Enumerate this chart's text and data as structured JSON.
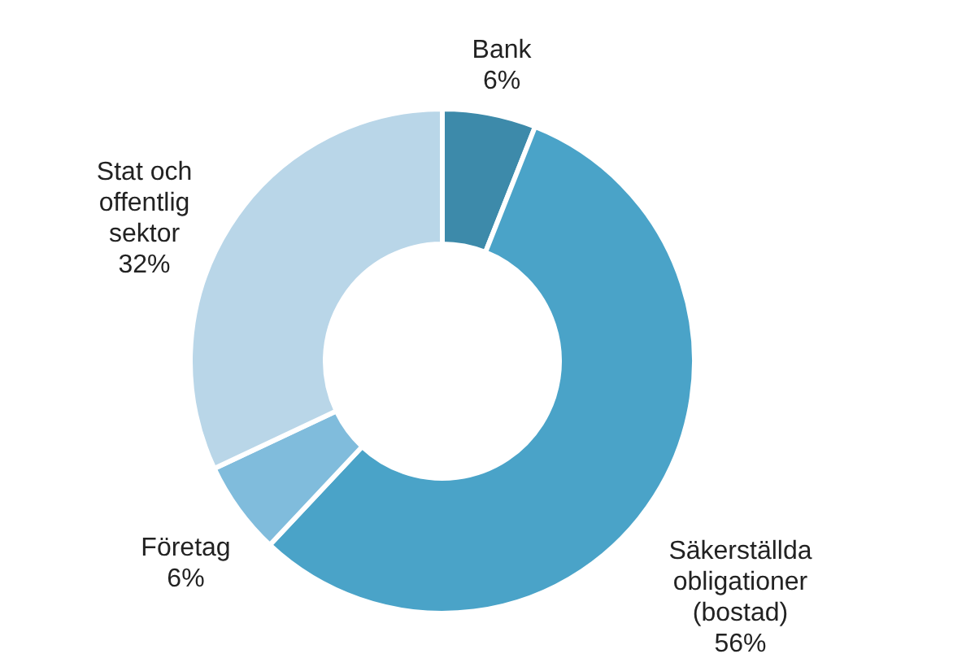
{
  "chart_data": {
    "type": "donut",
    "categories": [
      "Bank",
      "Säkerställda obligationer (bostad)",
      "Företag",
      "Stat och offentlig sektor"
    ],
    "values": [
      6,
      56,
      6,
      32
    ],
    "colors": [
      "#3d8aaa",
      "#4aa3c8",
      "#80bcdc",
      "#b9d6e8"
    ],
    "value_labels": [
      "6%",
      "56%",
      "6%",
      "32%"
    ]
  }
}
